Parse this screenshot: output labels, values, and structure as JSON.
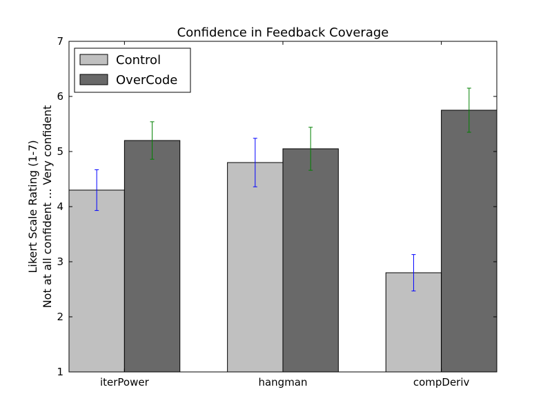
{
  "chart_data": {
    "type": "bar",
    "title": "Confidence in Feedback Coverage",
    "ylabel_line1": "Likert Scale Rating (1-7)",
    "ylabel_line2": "Not at all confident ... Very confident",
    "xlabel": "",
    "ylim": [
      1,
      7
    ],
    "yticks": [
      "1",
      "2",
      "3",
      "4",
      "5",
      "6",
      "7"
    ],
    "categories": [
      "iterPower",
      "hangman",
      "compDeriv"
    ],
    "legend_position": "top-left",
    "grid": false,
    "series": [
      {
        "name": "Control",
        "color": "#c0c0c0",
        "error_color": "#0000ff",
        "values": [
          4.3,
          4.8,
          2.8
        ],
        "errors": [
          0.37,
          0.44,
          0.33
        ]
      },
      {
        "name": "OverCode",
        "color": "#696969",
        "error_color": "#008000",
        "values": [
          5.2,
          5.05,
          5.75
        ],
        "errors": [
          0.34,
          0.39,
          0.4
        ]
      }
    ]
  }
}
